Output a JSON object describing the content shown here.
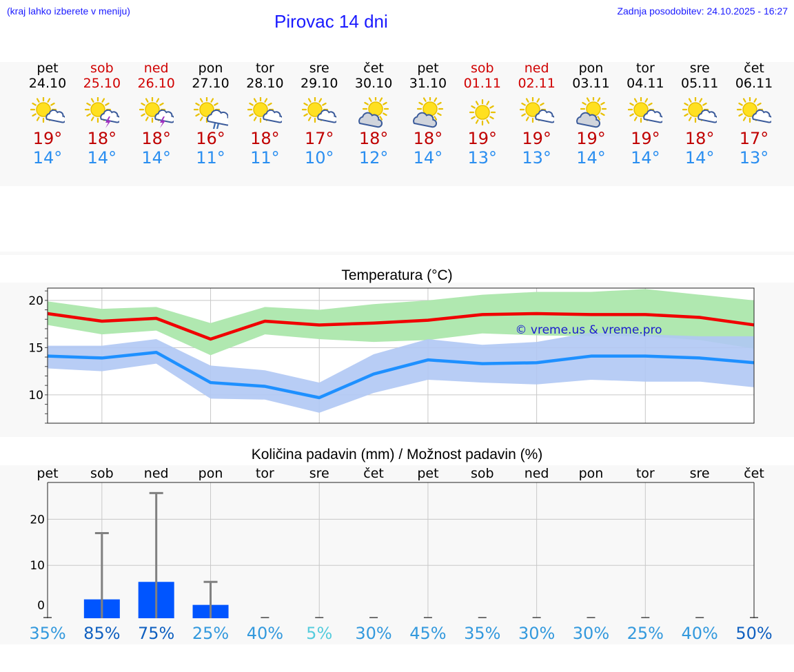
{
  "header": {
    "note": "(kraj lahko izberete v meniju)",
    "title": "Pirovac 14 dni",
    "update": "Zadnja posodobitev: 24.10.2025 - 16:27"
  },
  "colors": {
    "accent": "#1a1aff",
    "weekend": "#d00000",
    "max": "#c00000",
    "min": "#2a8ef0"
  },
  "days": [
    {
      "name": "pet",
      "date": "24.10",
      "weekend": false,
      "icon": "sun-cloud-icon",
      "max": "19°",
      "min": "14°"
    },
    {
      "name": "sob",
      "date": "25.10",
      "weekend": true,
      "icon": "sun-storm-icon",
      "max": "18°",
      "min": "14°"
    },
    {
      "name": "ned",
      "date": "26.10",
      "weekend": true,
      "icon": "sun-storm-icon",
      "max": "18°",
      "min": "14°"
    },
    {
      "name": "pon",
      "date": "27.10",
      "weekend": false,
      "icon": "sun-rain-icon",
      "max": "16°",
      "min": "11°"
    },
    {
      "name": "tor",
      "date": "28.10",
      "weekend": false,
      "icon": "sun-cloud-icon",
      "max": "18°",
      "min": "11°"
    },
    {
      "name": "sre",
      "date": "29.10",
      "weekend": false,
      "icon": "sun-cloud-icon",
      "max": "17°",
      "min": "10°"
    },
    {
      "name": "čet",
      "date": "30.10",
      "weekend": false,
      "icon": "cloud-sun-icon",
      "max": "18°",
      "min": "12°"
    },
    {
      "name": "pet",
      "date": "31.10",
      "weekend": false,
      "icon": "cloud-sun-icon",
      "max": "18°",
      "min": "14°"
    },
    {
      "name": "sob",
      "date": "01.11",
      "weekend": true,
      "icon": "sun-icon",
      "max": "19°",
      "min": "13°"
    },
    {
      "name": "ned",
      "date": "02.11",
      "weekend": true,
      "icon": "sun-cloud-icon",
      "max": "19°",
      "min": "13°"
    },
    {
      "name": "pon",
      "date": "03.11",
      "weekend": false,
      "icon": "cloud-sun-icon",
      "max": "19°",
      "min": "14°"
    },
    {
      "name": "tor",
      "date": "04.11",
      "weekend": false,
      "icon": "sun-cloud-icon",
      "max": "19°",
      "min": "14°"
    },
    {
      "name": "sre",
      "date": "05.11",
      "weekend": false,
      "icon": "sun-cloud-icon",
      "max": "18°",
      "min": "14°"
    },
    {
      "name": "čet",
      "date": "06.11",
      "weekend": false,
      "icon": "sun-cloud-icon",
      "max": "17°",
      "min": "13°"
    }
  ],
  "chart_data": [
    {
      "type": "line",
      "title": "Temperatura (°C)",
      "watermark": "© vreme.us & vreme.pro",
      "ylim": [
        7,
        21.3
      ],
      "yticks": [
        10,
        15,
        20
      ],
      "grid": true,
      "x": [
        "24.10",
        "25.10",
        "26.10",
        "27.10",
        "28.10",
        "29.10",
        "30.10",
        "31.10",
        "01.11",
        "02.11",
        "03.11",
        "04.11",
        "05.11",
        "06.11"
      ],
      "series": [
        {
          "color": "#f00000",
          "values": [
            18.6,
            17.8,
            18.1,
            15.9,
            17.8,
            17.4,
            17.6,
            17.9,
            18.5,
            18.6,
            18.5,
            18.5,
            18.2,
            17.4
          ]
        },
        {
          "color": "#1e90ff",
          "values": [
            14.1,
            13.9,
            14.5,
            11.3,
            10.9,
            9.7,
            12.2,
            13.7,
            13.3,
            13.4,
            14.1,
            14.1,
            13.9,
            13.4
          ]
        }
      ],
      "bands": [
        {
          "color": "#b0e8b0",
          "upper": [
            19.9,
            19.1,
            19.3,
            17.6,
            19.3,
            19.0,
            19.6,
            20.0,
            20.6,
            20.9,
            20.9,
            21.2,
            20.6,
            20.0
          ],
          "lower": [
            17.4,
            16.4,
            16.8,
            14.2,
            16.4,
            15.9,
            15.6,
            15.8,
            16.5,
            16.3,
            16.2,
            16.2,
            15.8,
            14.9
          ]
        },
        {
          "color": "#b0c8f4",
          "upper": [
            15.2,
            15.2,
            15.9,
            13.1,
            12.6,
            11.3,
            14.3,
            15.9,
            15.3,
            15.6,
            16.6,
            16.4,
            16.2,
            16.2
          ],
          "lower": [
            12.8,
            12.5,
            13.3,
            9.6,
            9.5,
            8.1,
            10.2,
            11.6,
            11.3,
            11.1,
            11.6,
            11.4,
            11.4,
            10.8
          ]
        }
      ]
    },
    {
      "type": "bar",
      "title": "Količina padavin (mm) / Možnost padavin (%)",
      "ylim": [
        -1.5,
        28
      ],
      "yticks": [
        0,
        10,
        20
      ],
      "grid": true,
      "categories": [
        "pet",
        "sob",
        "ned",
        "pon",
        "tor",
        "sre",
        "čet",
        "pet",
        "sob",
        "ned",
        "pon",
        "tor",
        "sre",
        "čet"
      ],
      "values": [
        0,
        2.6,
        6.4,
        1.4,
        0,
        0,
        0,
        0,
        0,
        0,
        0,
        0,
        0,
        0
      ],
      "error_high": [
        0,
        17.0,
        25.7,
        6.4,
        0,
        0,
        0,
        0,
        0,
        0,
        0,
        0,
        0,
        0
      ],
      "bar_color": "#0055ff",
      "probability": [
        "35%",
        "85%",
        "75%",
        "25%",
        "40%",
        "5%",
        "30%",
        "45%",
        "35%",
        "30%",
        "30%",
        "25%",
        "40%",
        "50%"
      ],
      "probability_colors": [
        "#3399dd",
        "#1060c0",
        "#1060c0",
        "#3399dd",
        "#3399dd",
        "#55ccdd",
        "#3399dd",
        "#3399dd",
        "#3399dd",
        "#3399dd",
        "#3399dd",
        "#3399dd",
        "#3399dd",
        "#1060c0"
      ]
    }
  ]
}
